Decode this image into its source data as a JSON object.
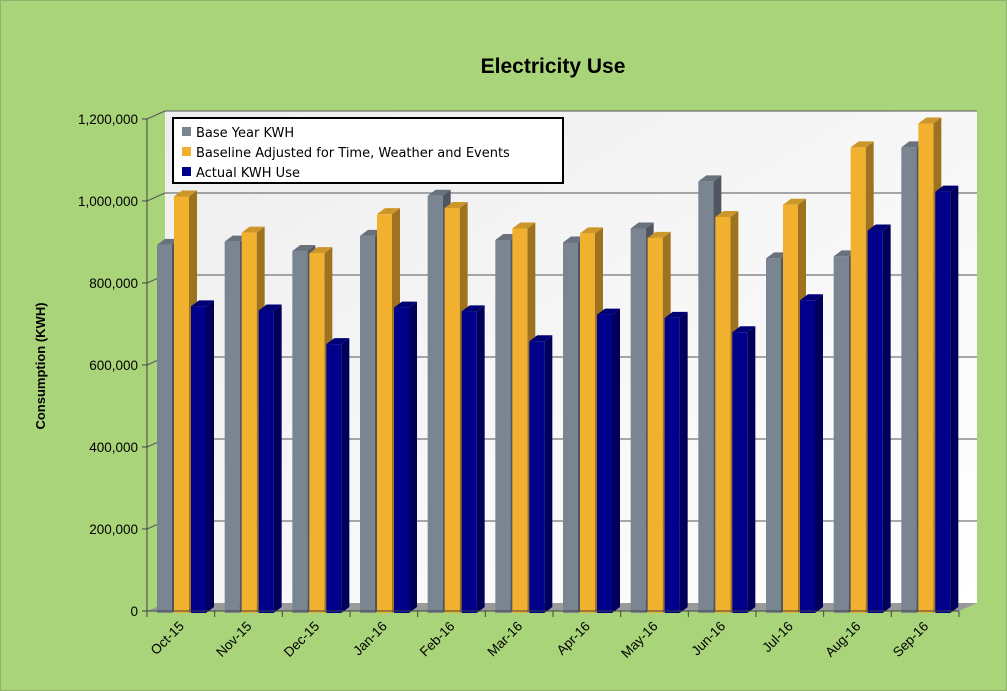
{
  "chart_data": {
    "type": "bar",
    "title": "Electricity Use",
    "xlabel": "",
    "ylabel": "Consumption (KWH)",
    "ylim": [
      0,
      1200000
    ],
    "yticks": [
      0,
      200000,
      400000,
      600000,
      800000,
      1000000,
      1200000
    ],
    "ytick_labels": [
      "0",
      "200,000",
      "400,000",
      "600,000",
      "800,000",
      "1,000,000",
      "1,200,000"
    ],
    "grid": true,
    "legend_position": "top-left",
    "categories": [
      "Oct-15",
      "Nov-15",
      "Dec-15",
      "Jan-16",
      "Feb-16",
      "Mar-16",
      "Apr-16",
      "May-16",
      "Jun-16",
      "Jul-16",
      "Aug-16",
      "Sep-16"
    ],
    "series": [
      {
        "name": "Base Year KWH",
        "color": "#7a8592",
        "values": [
          890000,
          898000,
          875000,
          912000,
          1010000,
          902000,
          896000,
          930000,
          1045000,
          857000,
          862000,
          1128000
        ]
      },
      {
        "name": "Baseline Adjusted for Time, Weather and Events",
        "color": "#f1b12f",
        "values": [
          1008000,
          920000,
          870000,
          965000,
          980000,
          930000,
          918000,
          907000,
          958000,
          988000,
          1128000,
          1186000
        ]
      },
      {
        "name": "Actual KWH Use",
        "color": "#00008b",
        "values": [
          740000,
          730000,
          648000,
          737000,
          728000,
          655000,
          720000,
          712000,
          677000,
          755000,
          925000,
          1020000
        ]
      }
    ]
  }
}
